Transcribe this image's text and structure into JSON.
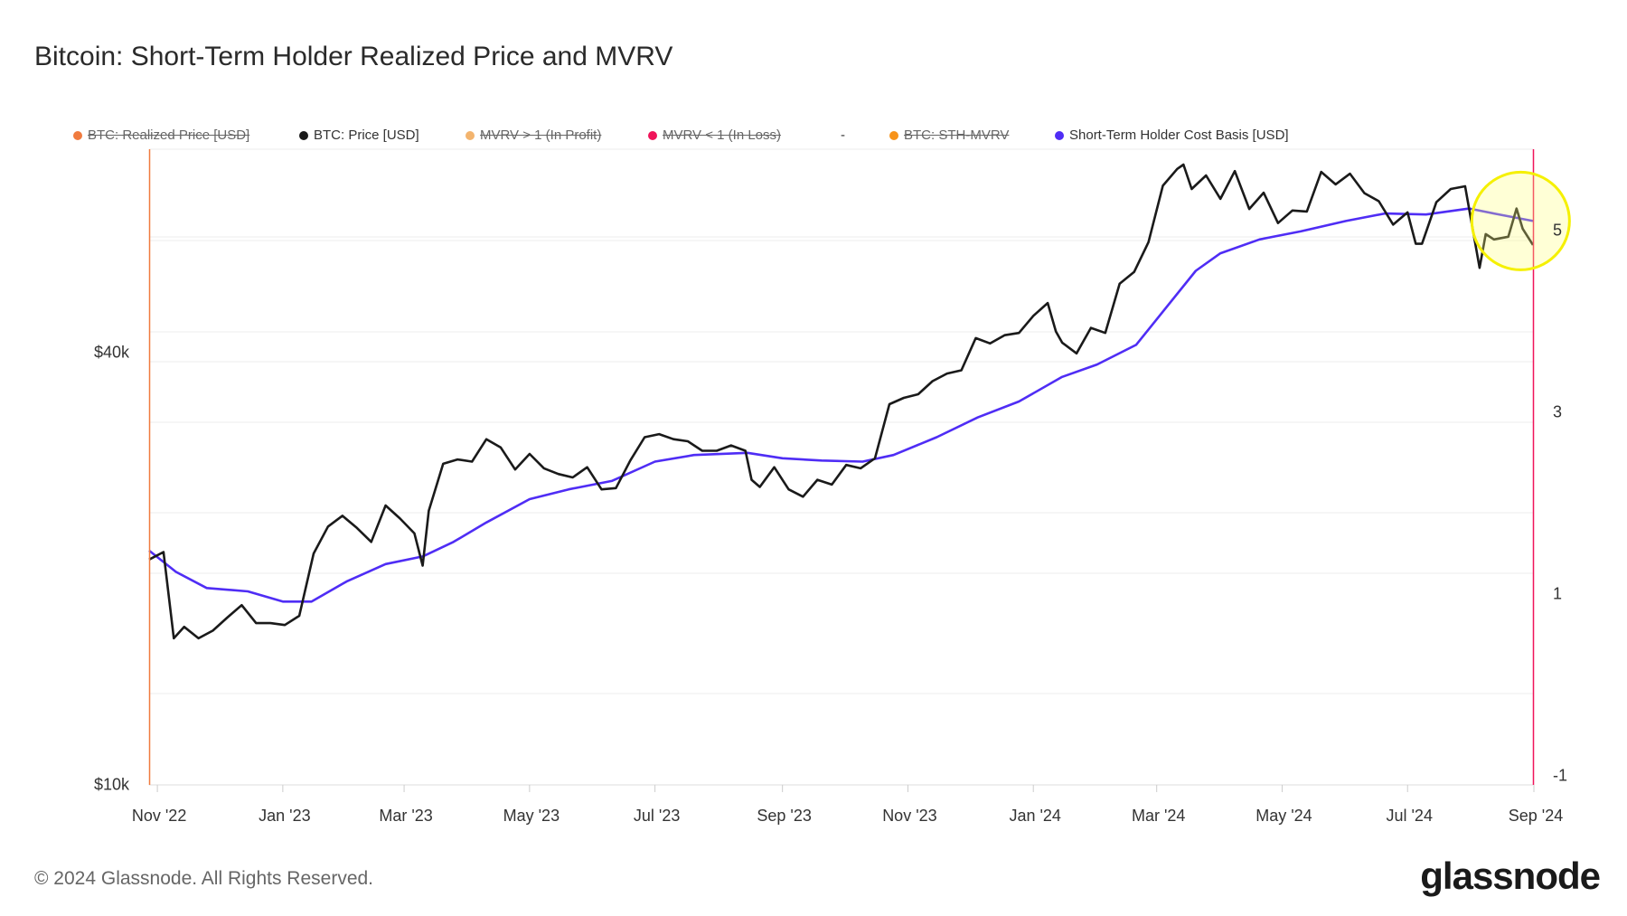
{
  "title": "Bitcoin: Short-Term Holder Realized Price and MVRV",
  "legend": [
    {
      "label": "BTC: Realized Price [USD]",
      "color": "#f07b3f",
      "enabled": false
    },
    {
      "label": "BTC: Price [USD]",
      "color": "#1a1a1a",
      "enabled": true
    },
    {
      "label": "MVRV > 1 (In Profit)",
      "color": "#f3b46e",
      "enabled": false
    },
    {
      "label": "MVRV < 1 (In Loss)",
      "color": "#f0145a",
      "enabled": false
    },
    {
      "label": "BTC: STH-MVRV",
      "color": "#f7931a",
      "enabled": false
    },
    {
      "label": "Short-Term Holder Cost Basis [USD]",
      "color": "#4f2df5",
      "enabled": true
    }
  ],
  "legend_separator": "-",
  "footer": "© 2024 Glassnode. All Rights Reserved.",
  "logo": "glassnode",
  "chart_data": {
    "type": "line",
    "title": "Bitcoin: Short-Term Holder Realized Price and MVRV",
    "x_range": [
      "2022-10-28",
      "2024-08-31"
    ],
    "x_ticks": [
      {
        "date": "2022-11-01",
        "label": "Nov '22"
      },
      {
        "date": "2023-01-01",
        "label": "Jan '23"
      },
      {
        "date": "2023-03-01",
        "label": "Mar '23"
      },
      {
        "date": "2023-05-01",
        "label": "May '23"
      },
      {
        "date": "2023-07-01",
        "label": "Jul '23"
      },
      {
        "date": "2023-09-01",
        "label": "Sep '23"
      },
      {
        "date": "2023-11-01",
        "label": "Nov '23"
      },
      {
        "date": "2024-01-01",
        "label": "Jan '24"
      },
      {
        "date": "2024-03-01",
        "label": "Mar '24"
      },
      {
        "date": "2024-05-01",
        "label": "May '24"
      },
      {
        "date": "2024-07-01",
        "label": "Jul '24"
      },
      {
        "date": "2024-09-01",
        "label": "Sep '24"
      }
    ],
    "y_left": {
      "scale": "log",
      "unit": "USD (thousands)",
      "range": [
        10,
        76.8
      ],
      "ticks": [
        {
          "value": 40,
          "label": "$40k"
        },
        {
          "value": 10,
          "label": "$10k"
        }
      ]
    },
    "y_right": {
      "scale": "linear",
      "range": [
        -1.1,
        5.9
      ],
      "ticks": [
        {
          "value": 5,
          "label": "5"
        },
        {
          "value": 3,
          "label": "3"
        },
        {
          "value": 1,
          "label": "1"
        },
        {
          "value": -1,
          "label": "-1"
        }
      ]
    },
    "annotation": {
      "type": "highlight-circle",
      "date": "2024-08-25",
      "value_usd_k": 61,
      "color": "#ffff00"
    },
    "series": [
      {
        "name": "BTC: Price [USD]",
        "color": "#1a1a1a",
        "points": [
          [
            "2022-10-28",
            20.6
          ],
          [
            "2022-11-04",
            21.1
          ],
          [
            "2022-11-09",
            16.0
          ],
          [
            "2022-11-14",
            16.6
          ],
          [
            "2022-11-21",
            16.0
          ],
          [
            "2022-11-28",
            16.4
          ],
          [
            "2022-12-05",
            17.1
          ],
          [
            "2022-12-12",
            17.8
          ],
          [
            "2022-12-19",
            16.8
          ],
          [
            "2022-12-26",
            16.8
          ],
          [
            "2023-01-02",
            16.7
          ],
          [
            "2023-01-09",
            17.2
          ],
          [
            "2023-01-16",
            21.0
          ],
          [
            "2023-01-23",
            22.9
          ],
          [
            "2023-01-30",
            23.7
          ],
          [
            "2023-02-06",
            22.8
          ],
          [
            "2023-02-13",
            21.8
          ],
          [
            "2023-02-20",
            24.5
          ],
          [
            "2023-02-27",
            23.5
          ],
          [
            "2023-03-06",
            22.4
          ],
          [
            "2023-03-10",
            20.2
          ],
          [
            "2023-03-13",
            24.1
          ],
          [
            "2023-03-20",
            28.0
          ],
          [
            "2023-03-27",
            28.4
          ],
          [
            "2023-04-03",
            28.2
          ],
          [
            "2023-04-10",
            30.3
          ],
          [
            "2023-04-17",
            29.5
          ],
          [
            "2023-04-24",
            27.5
          ],
          [
            "2023-05-01",
            28.9
          ],
          [
            "2023-05-08",
            27.6
          ],
          [
            "2023-05-15",
            27.1
          ],
          [
            "2023-05-22",
            26.8
          ],
          [
            "2023-05-29",
            27.7
          ],
          [
            "2023-06-05",
            25.8
          ],
          [
            "2023-06-12",
            25.9
          ],
          [
            "2023-06-19",
            28.3
          ],
          [
            "2023-06-26",
            30.5
          ],
          [
            "2023-07-03",
            30.8
          ],
          [
            "2023-07-10",
            30.3
          ],
          [
            "2023-07-17",
            30.1
          ],
          [
            "2023-07-24",
            29.2
          ],
          [
            "2023-07-31",
            29.2
          ],
          [
            "2023-08-07",
            29.7
          ],
          [
            "2023-08-14",
            29.2
          ],
          [
            "2023-08-17",
            26.6
          ],
          [
            "2023-08-21",
            26.0
          ],
          [
            "2023-08-28",
            27.7
          ],
          [
            "2023-09-04",
            25.8
          ],
          [
            "2023-09-11",
            25.2
          ],
          [
            "2023-09-18",
            26.6
          ],
          [
            "2023-09-25",
            26.2
          ],
          [
            "2023-10-02",
            27.9
          ],
          [
            "2023-10-09",
            27.6
          ],
          [
            "2023-10-16",
            28.5
          ],
          [
            "2023-10-23",
            33.9
          ],
          [
            "2023-10-30",
            34.6
          ],
          [
            "2023-11-06",
            35.0
          ],
          [
            "2023-11-13",
            36.5
          ],
          [
            "2023-11-20",
            37.4
          ],
          [
            "2023-11-27",
            37.8
          ],
          [
            "2023-12-04",
            41.9
          ],
          [
            "2023-12-11",
            41.2
          ],
          [
            "2023-12-18",
            42.3
          ],
          [
            "2023-12-25",
            42.6
          ],
          [
            "2024-01-01",
            45.0
          ],
          [
            "2024-01-08",
            46.9
          ],
          [
            "2024-01-12",
            42.8
          ],
          [
            "2024-01-15",
            41.3
          ],
          [
            "2024-01-22",
            39.9
          ],
          [
            "2024-01-29",
            43.3
          ],
          [
            "2024-02-05",
            42.6
          ],
          [
            "2024-02-12",
            49.9
          ],
          [
            "2024-02-19",
            51.8
          ],
          [
            "2024-02-26",
            57.0
          ],
          [
            "2024-03-04",
            68.3
          ],
          [
            "2024-03-11",
            72.1
          ],
          [
            "2024-03-14",
            73.1
          ],
          [
            "2024-03-18",
            67.6
          ],
          [
            "2024-03-25",
            70.6
          ],
          [
            "2024-04-01",
            65.5
          ],
          [
            "2024-04-08",
            71.6
          ],
          [
            "2024-04-15",
            63.4
          ],
          [
            "2024-04-22",
            66.8
          ],
          [
            "2024-04-29",
            60.6
          ],
          [
            "2024-05-06",
            63.1
          ],
          [
            "2024-05-13",
            62.9
          ],
          [
            "2024-05-20",
            71.4
          ],
          [
            "2024-05-27",
            68.6
          ],
          [
            "2024-06-03",
            71.0
          ],
          [
            "2024-06-10",
            66.7
          ],
          [
            "2024-06-17",
            65.0
          ],
          [
            "2024-06-24",
            60.3
          ],
          [
            "2024-07-01",
            62.7
          ],
          [
            "2024-07-05",
            56.7
          ],
          [
            "2024-07-08",
            56.7
          ],
          [
            "2024-07-15",
            64.8
          ],
          [
            "2024-07-22",
            67.6
          ],
          [
            "2024-07-29",
            68.2
          ],
          [
            "2024-08-05",
            52.5
          ],
          [
            "2024-08-08",
            58.5
          ],
          [
            "2024-08-12",
            57.5
          ],
          [
            "2024-08-19",
            58.0
          ],
          [
            "2024-08-23",
            63.5
          ],
          [
            "2024-08-26",
            59.5
          ],
          [
            "2024-08-31",
            56.5
          ]
        ]
      },
      {
        "name": "Short-Term Holder Cost Basis [USD]",
        "color": "#4f2df5",
        "points": [
          [
            "2022-10-28",
            21.2
          ],
          [
            "2022-11-10",
            19.8
          ],
          [
            "2022-11-25",
            18.8
          ],
          [
            "2022-12-15",
            18.6
          ],
          [
            "2023-01-01",
            18.0
          ],
          [
            "2023-01-15",
            18.0
          ],
          [
            "2023-02-01",
            19.2
          ],
          [
            "2023-02-20",
            20.3
          ],
          [
            "2023-03-10",
            20.8
          ],
          [
            "2023-03-25",
            21.8
          ],
          [
            "2023-04-10",
            23.2
          ],
          [
            "2023-05-01",
            25.0
          ],
          [
            "2023-05-20",
            25.8
          ],
          [
            "2023-06-10",
            26.5
          ],
          [
            "2023-07-01",
            28.2
          ],
          [
            "2023-07-20",
            28.8
          ],
          [
            "2023-08-15",
            29.0
          ],
          [
            "2023-09-01",
            28.5
          ],
          [
            "2023-09-20",
            28.3
          ],
          [
            "2023-10-10",
            28.2
          ],
          [
            "2023-10-25",
            28.8
          ],
          [
            "2023-11-15",
            30.5
          ],
          [
            "2023-12-05",
            32.5
          ],
          [
            "2023-12-25",
            34.2
          ],
          [
            "2024-01-15",
            37.0
          ],
          [
            "2024-02-01",
            38.5
          ],
          [
            "2024-02-20",
            41.0
          ],
          [
            "2024-03-05",
            46.0
          ],
          [
            "2024-03-20",
            52.0
          ],
          [
            "2024-04-01",
            55.0
          ],
          [
            "2024-04-20",
            57.5
          ],
          [
            "2024-05-10",
            59.0
          ],
          [
            "2024-06-01",
            61.0
          ],
          [
            "2024-06-20",
            62.5
          ],
          [
            "2024-07-10",
            62.3
          ],
          [
            "2024-07-31",
            63.5
          ],
          [
            "2024-08-12",
            62.5
          ],
          [
            "2024-08-31",
            61.0
          ]
        ]
      }
    ]
  }
}
